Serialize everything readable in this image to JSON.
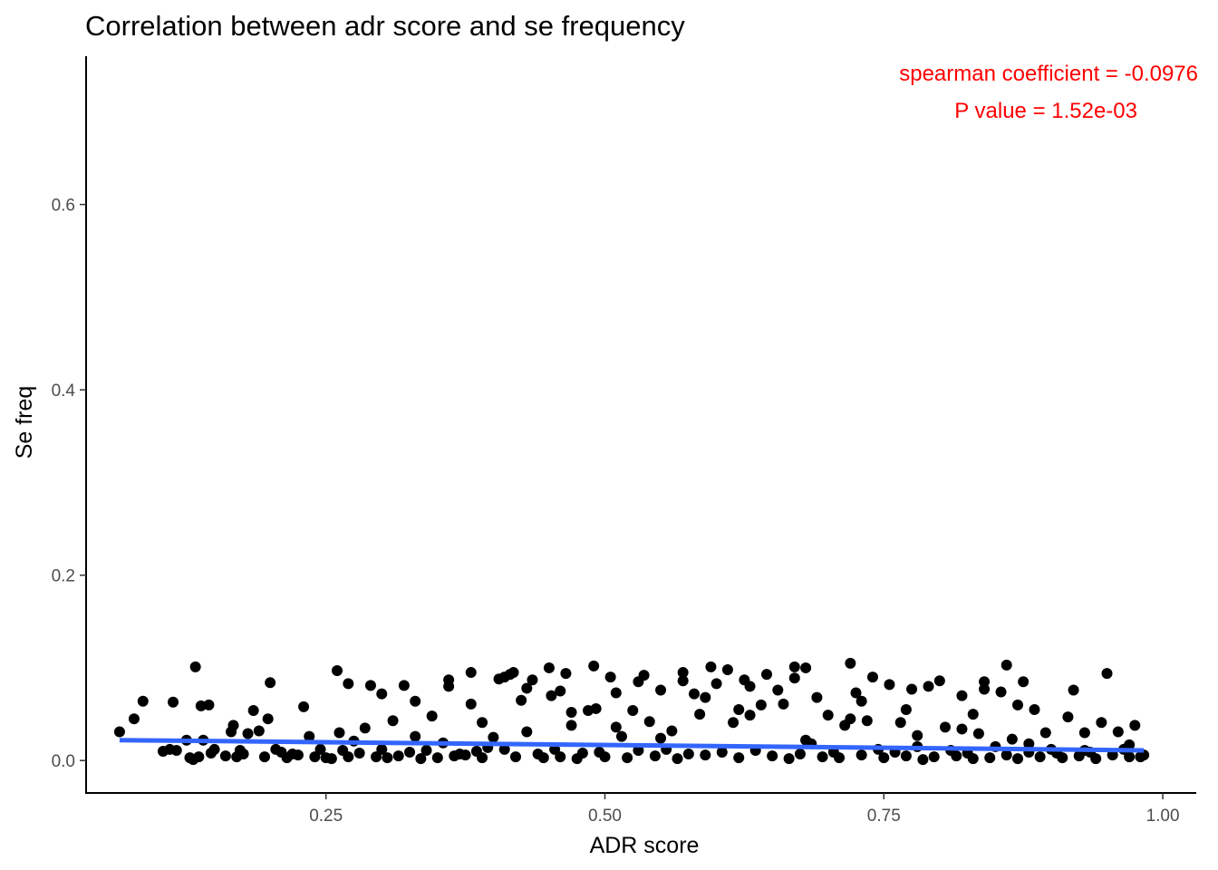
{
  "chart_data": {
    "type": "scatter",
    "title": "Correlation between adr score and se frequency",
    "xlabel": "ADR score",
    "ylabel": "Se freq",
    "xlim": [
      0.035,
      1.03
    ],
    "ylim": [
      -0.035,
      0.76
    ],
    "x_ticks": [
      0.25,
      0.5,
      0.75,
      1.0
    ],
    "x_tick_labels": [
      "0.25",
      "0.50",
      "0.75",
      "1.00"
    ],
    "y_ticks": [
      0.0,
      0.2,
      0.4,
      0.6
    ],
    "y_tick_labels": [
      "0.0",
      "0.2",
      "0.4",
      "0.6"
    ],
    "annotations": [
      "spearman coefficient = -0.0976",
      "P value =  1.52e-03"
    ],
    "annotation_placement": "top-right",
    "grid": false,
    "point_color": "#000000",
    "fit_line": {
      "type": "linear",
      "color": "#3366ff",
      "x": [
        0.065,
        0.983
      ],
      "y": [
        0.022,
        0.011
      ]
    },
    "series": [
      {
        "points": [
          [
            0.065,
            0.031
          ],
          [
            0.078,
            0.045
          ],
          [
            0.086,
            0.064
          ],
          [
            0.104,
            0.01
          ],
          [
            0.11,
            0.012
          ],
          [
            0.113,
            0.063
          ],
          [
            0.116,
            0.011
          ],
          [
            0.125,
            0.022
          ],
          [
            0.128,
            0.003
          ],
          [
            0.131,
            0.001
          ],
          [
            0.133,
            0.101
          ],
          [
            0.136,
            0.004
          ],
          [
            0.138,
            0.059
          ],
          [
            0.14,
            0.022
          ],
          [
            0.145,
            0.06
          ],
          [
            0.147,
            0.008
          ],
          [
            0.15,
            0.012
          ],
          [
            0.16,
            0.005
          ],
          [
            0.165,
            0.031
          ],
          [
            0.167,
            0.038
          ],
          [
            0.17,
            0.004
          ],
          [
            0.173,
            0.011
          ],
          [
            0.176,
            0.007
          ],
          [
            0.18,
            0.029
          ],
          [
            0.185,
            0.054
          ],
          [
            0.19,
            0.032
          ],
          [
            0.195,
            0.004
          ],
          [
            0.198,
            0.045
          ],
          [
            0.2,
            0.084
          ],
          [
            0.205,
            0.012
          ],
          [
            0.21,
            0.009
          ],
          [
            0.215,
            0.003
          ],
          [
            0.22,
            0.007
          ],
          [
            0.225,
            0.006
          ],
          [
            0.23,
            0.058
          ],
          [
            0.235,
            0.026
          ],
          [
            0.24,
            0.004
          ],
          [
            0.245,
            0.012
          ],
          [
            0.25,
            0.003
          ],
          [
            0.255,
            0.002
          ],
          [
            0.26,
            0.097
          ],
          [
            0.262,
            0.03
          ],
          [
            0.265,
            0.011
          ],
          [
            0.27,
            0.004
          ],
          [
            0.275,
            0.021
          ],
          [
            0.28,
            0.008
          ],
          [
            0.285,
            0.035
          ],
          [
            0.29,
            0.081
          ],
          [
            0.295,
            0.004
          ],
          [
            0.3,
            0.012
          ],
          [
            0.305,
            0.003
          ],
          [
            0.31,
            0.043
          ],
          [
            0.315,
            0.005
          ],
          [
            0.32,
            0.081
          ],
          [
            0.325,
            0.009
          ],
          [
            0.33,
            0.026
          ],
          [
            0.335,
            0.002
          ],
          [
            0.34,
            0.011
          ],
          [
            0.345,
            0.048
          ],
          [
            0.35,
            0.003
          ],
          [
            0.355,
            0.019
          ],
          [
            0.36,
            0.08
          ],
          [
            0.365,
            0.005
          ],
          [
            0.37,
            0.007
          ],
          [
            0.375,
            0.006
          ],
          [
            0.38,
            0.061
          ],
          [
            0.385,
            0.01
          ],
          [
            0.39,
            0.003
          ],
          [
            0.395,
            0.014
          ],
          [
            0.4,
            0.025
          ],
          [
            0.405,
            0.088
          ],
          [
            0.41,
            0.012
          ],
          [
            0.415,
            0.093
          ],
          [
            0.418,
            0.095
          ],
          [
            0.42,
            0.004
          ],
          [
            0.425,
            0.065
          ],
          [
            0.43,
            0.031
          ],
          [
            0.435,
            0.087
          ],
          [
            0.44,
            0.007
          ],
          [
            0.445,
            0.003
          ],
          [
            0.45,
            0.1
          ],
          [
            0.452,
            0.07
          ],
          [
            0.455,
            0.012
          ],
          [
            0.46,
            0.004
          ],
          [
            0.465,
            0.094
          ],
          [
            0.47,
            0.038
          ],
          [
            0.475,
            0.002
          ],
          [
            0.48,
            0.008
          ],
          [
            0.485,
            0.054
          ],
          [
            0.49,
            0.102
          ],
          [
            0.492,
            0.056
          ],
          [
            0.495,
            0.009
          ],
          [
            0.5,
            0.004
          ],
          [
            0.505,
            0.09
          ],
          [
            0.51,
            0.073
          ],
          [
            0.515,
            0.026
          ],
          [
            0.52,
            0.003
          ],
          [
            0.525,
            0.054
          ],
          [
            0.53,
            0.011
          ],
          [
            0.535,
            0.092
          ],
          [
            0.54,
            0.042
          ],
          [
            0.545,
            0.005
          ],
          [
            0.55,
            0.076
          ],
          [
            0.555,
            0.012
          ],
          [
            0.56,
            0.032
          ],
          [
            0.565,
            0.002
          ],
          [
            0.57,
            0.086
          ],
          [
            0.575,
            0.007
          ],
          [
            0.58,
            0.072
          ],
          [
            0.585,
            0.05
          ],
          [
            0.59,
            0.006
          ],
          [
            0.595,
            0.101
          ],
          [
            0.6,
            0.083
          ],
          [
            0.605,
            0.009
          ],
          [
            0.61,
            0.098
          ],
          [
            0.615,
            0.041
          ],
          [
            0.62,
            0.003
          ],
          [
            0.625,
            0.087
          ],
          [
            0.63,
            0.08
          ],
          [
            0.635,
            0.011
          ],
          [
            0.64,
            0.06
          ],
          [
            0.645,
            0.093
          ],
          [
            0.65,
            0.005
          ],
          [
            0.655,
            0.076
          ],
          [
            0.66,
            0.061
          ],
          [
            0.665,
            0.002
          ],
          [
            0.67,
            0.089
          ],
          [
            0.675,
            0.007
          ],
          [
            0.68,
            0.1
          ],
          [
            0.685,
            0.018
          ],
          [
            0.69,
            0.068
          ],
          [
            0.695,
            0.004
          ],
          [
            0.7,
            0.049
          ],
          [
            0.705,
            0.009
          ],
          [
            0.71,
            0.003
          ],
          [
            0.715,
            0.038
          ],
          [
            0.72,
            0.105
          ],
          [
            0.725,
            0.073
          ],
          [
            0.73,
            0.006
          ],
          [
            0.735,
            0.043
          ],
          [
            0.74,
            0.09
          ],
          [
            0.745,
            0.012
          ],
          [
            0.75,
            0.003
          ],
          [
            0.755,
            0.082
          ],
          [
            0.76,
            0.009
          ],
          [
            0.765,
            0.041
          ],
          [
            0.77,
            0.005
          ],
          [
            0.775,
            0.077
          ],
          [
            0.78,
            0.027
          ],
          [
            0.785,
            0.001
          ],
          [
            0.79,
            0.08
          ],
          [
            0.795,
            0.004
          ],
          [
            0.8,
            0.086
          ],
          [
            0.805,
            0.036
          ],
          [
            0.81,
            0.011
          ],
          [
            0.815,
            0.005
          ],
          [
            0.82,
            0.07
          ],
          [
            0.825,
            0.008
          ],
          [
            0.83,
            0.002
          ],
          [
            0.835,
            0.029
          ],
          [
            0.84,
            0.077
          ],
          [
            0.845,
            0.003
          ],
          [
            0.85,
            0.015
          ],
          [
            0.855,
            0.074
          ],
          [
            0.86,
            0.006
          ],
          [
            0.865,
            0.023
          ],
          [
            0.87,
            0.002
          ],
          [
            0.875,
            0.085
          ],
          [
            0.88,
            0.009
          ],
          [
            0.885,
            0.055
          ],
          [
            0.89,
            0.004
          ],
          [
            0.895,
            0.03
          ],
          [
            0.9,
            0.012
          ],
          [
            0.905,
            0.008
          ],
          [
            0.91,
            0.003
          ],
          [
            0.915,
            0.047
          ],
          [
            0.92,
            0.076
          ],
          [
            0.925,
            0.005
          ],
          [
            0.93,
            0.03
          ],
          [
            0.935,
            0.009
          ],
          [
            0.94,
            0.002
          ],
          [
            0.945,
            0.041
          ],
          [
            0.95,
            0.094
          ],
          [
            0.955,
            0.006
          ],
          [
            0.96,
            0.031
          ],
          [
            0.965,
            0.012
          ],
          [
            0.97,
            0.004
          ],
          [
            0.975,
            0.038
          ],
          [
            0.98,
            0.004
          ],
          [
            0.983,
            0.006
          ],
          [
            0.38,
            0.095
          ],
          [
            0.41,
            0.09
          ],
          [
            0.46,
            0.075
          ],
          [
            0.53,
            0.085
          ],
          [
            0.57,
            0.095
          ],
          [
            0.62,
            0.055
          ],
          [
            0.67,
            0.101
          ],
          [
            0.72,
            0.045
          ],
          [
            0.77,
            0.055
          ],
          [
            0.82,
            0.034
          ],
          [
            0.27,
            0.083
          ],
          [
            0.3,
            0.072
          ],
          [
            0.33,
            0.064
          ],
          [
            0.36,
            0.087
          ],
          [
            0.39,
            0.041
          ],
          [
            0.43,
            0.078
          ],
          [
            0.47,
            0.052
          ],
          [
            0.51,
            0.036
          ],
          [
            0.55,
            0.024
          ],
          [
            0.59,
            0.068
          ],
          [
            0.63,
            0.049
          ],
          [
            0.68,
            0.022
          ],
          [
            0.73,
            0.064
          ],
          [
            0.78,
            0.015
          ],
          [
            0.83,
            0.05
          ],
          [
            0.88,
            0.018
          ],
          [
            0.93,
            0.011
          ],
          [
            0.97,
            0.017
          ],
          [
            0.86,
            0.103
          ],
          [
            0.84,
            0.085
          ],
          [
            0.87,
            0.06
          ]
        ]
      }
    ]
  }
}
